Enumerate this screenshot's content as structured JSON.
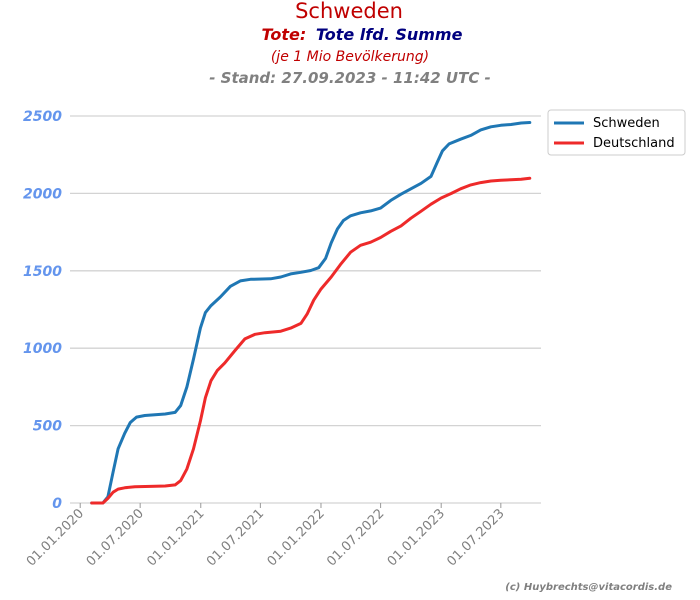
{
  "header": {
    "country": "Schweden",
    "metric_prefix": "Tote:",
    "metric_name": "Tote lfd. Summe",
    "note": "(je 1 Mio Bevölkerung)",
    "stand": "- Stand: 27.09.2023 - 11:42 UTC -"
  },
  "footer": {
    "credit": "(c) Huybrechts@vitacordis.de"
  },
  "colors": {
    "country_title": "#c00000",
    "metric_prefix": "#c00000",
    "metric_name": "#00007f",
    "note": "#c00000",
    "stand": "#808080",
    "ytick": "#6495ed",
    "xtick": "#808080",
    "grid": "#d3d3d3",
    "credit": "#808080"
  },
  "chart_data": {
    "type": "line",
    "title": "Schweden",
    "xlabel": "",
    "ylabel": "",
    "x_axis_kind": "date",
    "xlim": [
      "2019-12-01",
      "2023-10-31"
    ],
    "ylim": [
      0,
      2500
    ],
    "grid": true,
    "legend_position": "top-right",
    "y_ticks": [
      0,
      500,
      1000,
      1500,
      2000,
      2500
    ],
    "x_ticks": [
      "2020-01-01",
      "2020-07-01",
      "2021-01-01",
      "2021-07-01",
      "2022-01-01",
      "2022-07-01",
      "2023-01-01",
      "2023-07-01"
    ],
    "x_tick_labels": [
      "01.01.2020",
      "01.07.2020",
      "01.01.2021",
      "01.07.2021",
      "01.01.2022",
      "01.07.2022",
      "01.01.2023",
      "01.07.2023"
    ],
    "series": [
      {
        "name": "Schweden",
        "color": "#1f77b4",
        "points": [
          [
            "2020-02-05",
            0
          ],
          [
            "2020-03-10",
            0
          ],
          [
            "2020-03-25",
            40
          ],
          [
            "2020-04-10",
            200
          ],
          [
            "2020-04-25",
            350
          ],
          [
            "2020-05-15",
            450
          ],
          [
            "2020-06-01",
            520
          ],
          [
            "2020-06-20",
            555
          ],
          [
            "2020-07-15",
            565
          ],
          [
            "2020-08-15",
            570
          ],
          [
            "2020-09-15",
            575
          ],
          [
            "2020-10-15",
            585
          ],
          [
            "2020-11-01",
            630
          ],
          [
            "2020-11-20",
            750
          ],
          [
            "2020-12-10",
            930
          ],
          [
            "2020-12-31",
            1130
          ],
          [
            "2021-01-15",
            1230
          ],
          [
            "2021-02-01",
            1275
          ],
          [
            "2021-03-01",
            1330
          ],
          [
            "2021-04-01",
            1400
          ],
          [
            "2021-05-01",
            1435
          ],
          [
            "2021-06-01",
            1445
          ],
          [
            "2021-08-01",
            1448
          ],
          [
            "2021-09-01",
            1460
          ],
          [
            "2021-10-01",
            1480
          ],
          [
            "2021-11-01",
            1490
          ],
          [
            "2021-12-01",
            1502
          ],
          [
            "2021-12-25",
            1520
          ],
          [
            "2022-01-15",
            1580
          ],
          [
            "2022-02-01",
            1680
          ],
          [
            "2022-02-20",
            1770
          ],
          [
            "2022-03-10",
            1825
          ],
          [
            "2022-04-01",
            1855
          ],
          [
            "2022-05-01",
            1875
          ],
          [
            "2022-06-01",
            1887
          ],
          [
            "2022-07-01",
            1905
          ],
          [
            "2022-08-01",
            1955
          ],
          [
            "2022-09-01",
            1995
          ],
          [
            "2022-10-01",
            2030
          ],
          [
            "2022-11-01",
            2065
          ],
          [
            "2022-12-01",
            2110
          ],
          [
            "2022-12-20",
            2200
          ],
          [
            "2023-01-05",
            2275
          ],
          [
            "2023-01-25",
            2320
          ],
          [
            "2023-03-01",
            2350
          ],
          [
            "2023-04-01",
            2375
          ],
          [
            "2023-05-01",
            2410
          ],
          [
            "2023-06-01",
            2430
          ],
          [
            "2023-07-01",
            2440
          ],
          [
            "2023-08-01",
            2445
          ],
          [
            "2023-09-01",
            2455
          ],
          [
            "2023-09-27",
            2458
          ]
        ]
      },
      {
        "name": "Deutschland",
        "color": "#ee2a2a",
        "points": [
          [
            "2020-02-05",
            0
          ],
          [
            "2020-03-10",
            0
          ],
          [
            "2020-03-25",
            30
          ],
          [
            "2020-04-10",
            70
          ],
          [
            "2020-04-25",
            90
          ],
          [
            "2020-05-15",
            98
          ],
          [
            "2020-06-15",
            105
          ],
          [
            "2020-08-01",
            107
          ],
          [
            "2020-09-15",
            110
          ],
          [
            "2020-10-15",
            117
          ],
          [
            "2020-11-01",
            145
          ],
          [
            "2020-11-20",
            220
          ],
          [
            "2020-12-10",
            350
          ],
          [
            "2020-12-31",
            530
          ],
          [
            "2021-01-15",
            680
          ],
          [
            "2021-02-01",
            790
          ],
          [
            "2021-02-20",
            855
          ],
          [
            "2021-03-15",
            905
          ],
          [
            "2021-04-15",
            985
          ],
          [
            "2021-05-15",
            1060
          ],
          [
            "2021-06-15",
            1090
          ],
          [
            "2021-07-15",
            1100
          ],
          [
            "2021-09-01",
            1110
          ],
          [
            "2021-10-01",
            1130
          ],
          [
            "2021-11-01",
            1160
          ],
          [
            "2021-11-20",
            1220
          ],
          [
            "2021-12-10",
            1310
          ],
          [
            "2021-12-31",
            1380
          ],
          [
            "2022-02-01",
            1460
          ],
          [
            "2022-03-01",
            1540
          ],
          [
            "2022-04-01",
            1620
          ],
          [
            "2022-05-01",
            1665
          ],
          [
            "2022-06-01",
            1685
          ],
          [
            "2022-07-01",
            1715
          ],
          [
            "2022-08-01",
            1755
          ],
          [
            "2022-09-01",
            1790
          ],
          [
            "2022-10-01",
            1840
          ],
          [
            "2022-11-01",
            1885
          ],
          [
            "2022-12-01",
            1930
          ],
          [
            "2023-01-01",
            1970
          ],
          [
            "2023-02-01",
            2000
          ],
          [
            "2023-03-01",
            2030
          ],
          [
            "2023-04-01",
            2055
          ],
          [
            "2023-05-01",
            2070
          ],
          [
            "2023-06-01",
            2080
          ],
          [
            "2023-07-01",
            2085
          ],
          [
            "2023-08-01",
            2088
          ],
          [
            "2023-09-01",
            2092
          ],
          [
            "2023-09-27",
            2098
          ]
        ]
      }
    ]
  }
}
